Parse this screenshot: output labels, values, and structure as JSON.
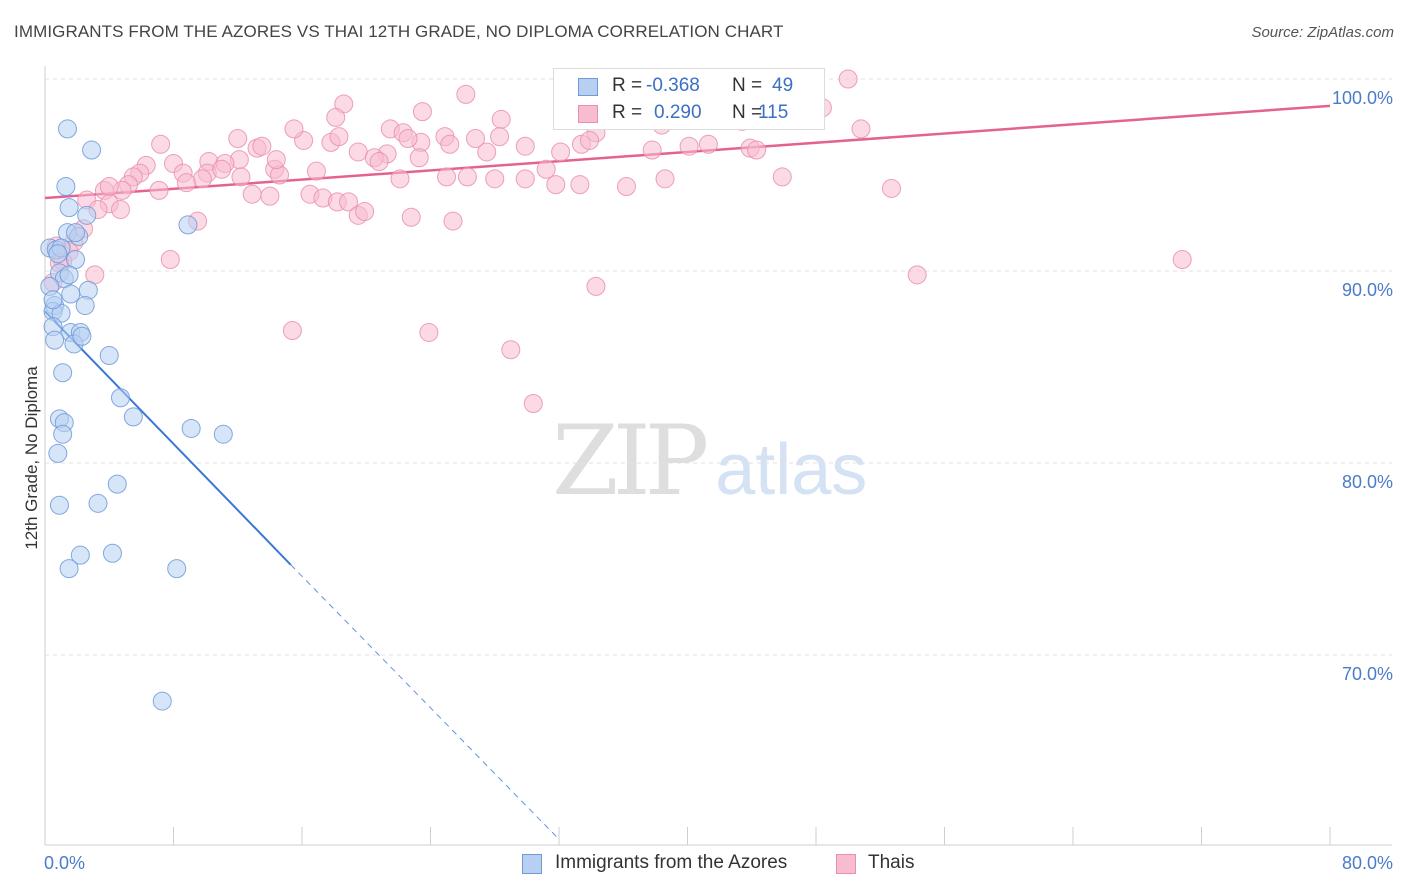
{
  "header": {
    "title": "IMMIGRANTS FROM THE AZORES VS THAI 12TH GRADE, NO DIPLOMA CORRELATION CHART",
    "source": "Source: ZipAtlas.com"
  },
  "watermark": {
    "zip": "ZIP",
    "atlas": "atlas"
  },
  "legend_top": {
    "rows": [
      {
        "r_label": "R =",
        "r_value": "-0.368",
        "n_label": "N =",
        "n_value": "49"
      },
      {
        "r_label": "R =",
        "r_value": "0.290",
        "n_label": "N =",
        "n_value": "115"
      }
    ]
  },
  "legend_bottom": {
    "azores": "Immigrants from the Azores",
    "thais": "Thais"
  },
  "colors": {
    "azores_fill": "#b7d0f2",
    "azores_stroke": "#6f9ad8",
    "azores_line": "#3a78d6",
    "thais_fill": "#f7bcd0",
    "thais_stroke": "#ea8fad",
    "thais_line": "#e4628f",
    "tick_text": "#4a7cc8",
    "grid": "#e2e2e2"
  },
  "chart_data": {
    "type": "scatter",
    "title": "IMMIGRANTS FROM THE AZORES VS THAI 12TH GRADE, NO DIPLOMA CORRELATION CHART",
    "xlabel": "",
    "ylabel": "12th Grade, No Diploma",
    "xlim": [
      0,
      80
    ],
    "ylim": [
      60,
      101.6
    ],
    "x_tick_labels": [
      "0.0%",
      "80.0%"
    ],
    "x_minor_ticks": [
      0,
      8,
      16,
      24,
      32,
      40,
      48,
      56,
      64,
      72,
      80
    ],
    "y_ticks": [
      {
        "value": 100,
        "label": "100.0%"
      },
      {
        "value": 90,
        "label": "90.0%"
      },
      {
        "value": 80,
        "label": "80.0%"
      },
      {
        "value": 70,
        "label": "70.0%"
      }
    ],
    "grid": "horizontal dashed",
    "series": [
      {
        "name": "Immigrants from the Azores",
        "R": -0.368,
        "N": 49,
        "trend": {
          "x0": 0,
          "y0": 87.9,
          "x1": 15.3,
          "y1": 74.7,
          "dash_to_x": 32,
          "dash_to_y": 60.4
        },
        "points": [
          [
            1.4,
            97.4
          ],
          [
            2.9,
            96.3
          ],
          [
            1.3,
            94.4
          ],
          [
            1.5,
            93.3
          ],
          [
            2.6,
            92.9
          ],
          [
            8.9,
            92.4
          ],
          [
            1.4,
            92.0
          ],
          [
            2.1,
            91.8
          ],
          [
            0.3,
            91.2
          ],
          [
            0.7,
            91.1
          ],
          [
            1.0,
            91.2
          ],
          [
            1.9,
            90.6
          ],
          [
            0.9,
            89.9
          ],
          [
            1.2,
            89.6
          ],
          [
            1.5,
            89.8
          ],
          [
            0.3,
            89.2
          ],
          [
            2.7,
            89.0
          ],
          [
            1.6,
            88.8
          ],
          [
            0.6,
            88.2
          ],
          [
            2.5,
            88.2
          ],
          [
            0.5,
            87.9
          ],
          [
            1.0,
            87.8
          ],
          [
            0.5,
            87.1
          ],
          [
            1.6,
            86.8
          ],
          [
            2.2,
            86.8
          ],
          [
            1.8,
            86.2
          ],
          [
            2.3,
            86.6
          ],
          [
            0.6,
            86.4
          ],
          [
            4.0,
            85.6
          ],
          [
            1.1,
            84.7
          ],
          [
            4.7,
            83.4
          ],
          [
            5.5,
            82.4
          ],
          [
            0.9,
            82.3
          ],
          [
            1.2,
            82.1
          ],
          [
            9.1,
            81.8
          ],
          [
            11.1,
            81.5
          ],
          [
            1.1,
            81.5
          ],
          [
            0.8,
            80.5
          ],
          [
            4.5,
            78.9
          ],
          [
            0.9,
            77.8
          ],
          [
            3.3,
            77.9
          ],
          [
            2.2,
            75.2
          ],
          [
            4.2,
            75.3
          ],
          [
            1.5,
            74.5
          ],
          [
            8.2,
            74.5
          ],
          [
            7.3,
            67.6
          ],
          [
            1.9,
            92.0
          ],
          [
            0.5,
            88.5
          ],
          [
            0.8,
            90.9
          ]
        ]
      },
      {
        "name": "Thais",
        "R": 0.29,
        "N": 115,
        "trend": {
          "x0": 0,
          "y0": 93.8,
          "x1": 80,
          "y1": 98.6
        },
        "points": [
          [
            32.5,
            100.0
          ],
          [
            39.0,
            100.0
          ],
          [
            50.0,
            100.0
          ],
          [
            46.2,
            99.4
          ],
          [
            26.2,
            99.2
          ],
          [
            45.4,
            99.0
          ],
          [
            18.6,
            98.7
          ],
          [
            35.9,
            99.1
          ],
          [
            47.6,
            98.0
          ],
          [
            28.4,
            97.9
          ],
          [
            32.6,
            97.9
          ],
          [
            39.7,
            98.0
          ],
          [
            21.5,
            97.4
          ],
          [
            22.3,
            97.2
          ],
          [
            24.9,
            97.0
          ],
          [
            23.4,
            96.7
          ],
          [
            38.4,
            97.6
          ],
          [
            43.4,
            97.8
          ],
          [
            50.8,
            97.4
          ],
          [
            34.3,
            97.2
          ],
          [
            40.1,
            96.5
          ],
          [
            41.3,
            96.6
          ],
          [
            43.9,
            96.4
          ],
          [
            29.9,
            96.5
          ],
          [
            33.4,
            96.6
          ],
          [
            12.0,
            96.9
          ],
          [
            16.1,
            96.8
          ],
          [
            17.8,
            96.7
          ],
          [
            13.2,
            96.4
          ],
          [
            7.2,
            96.6
          ],
          [
            18.3,
            97.0
          ],
          [
            19.5,
            96.2
          ],
          [
            21.3,
            96.1
          ],
          [
            20.5,
            95.9
          ],
          [
            23.3,
            95.9
          ],
          [
            12.1,
            95.8
          ],
          [
            10.2,
            95.7
          ],
          [
            8.0,
            95.6
          ],
          [
            6.3,
            95.5
          ],
          [
            5.9,
            95.1
          ],
          [
            11.2,
            95.6
          ],
          [
            8.6,
            95.1
          ],
          [
            10.1,
            95.1
          ],
          [
            11.0,
            95.3
          ],
          [
            14.3,
            95.3
          ],
          [
            14.6,
            95.0
          ],
          [
            12.2,
            94.9
          ],
          [
            9.8,
            94.8
          ],
          [
            8.8,
            94.6
          ],
          [
            5.5,
            94.9
          ],
          [
            5.2,
            94.5
          ],
          [
            4.8,
            94.2
          ],
          [
            3.7,
            94.2
          ],
          [
            4.0,
            94.4
          ],
          [
            7.1,
            94.2
          ],
          [
            2.6,
            93.7
          ],
          [
            4.0,
            93.5
          ],
          [
            4.7,
            93.2
          ],
          [
            3.3,
            93.2
          ],
          [
            12.9,
            94.0
          ],
          [
            14.0,
            93.9
          ],
          [
            16.5,
            94.0
          ],
          [
            17.3,
            93.8
          ],
          [
            18.2,
            93.6
          ],
          [
            18.9,
            93.6
          ],
          [
            19.5,
            92.9
          ],
          [
            19.9,
            93.1
          ],
          [
            22.1,
            94.8
          ],
          [
            25.0,
            94.9
          ],
          [
            26.3,
            94.9
          ],
          [
            28.0,
            94.8
          ],
          [
            29.9,
            94.8
          ],
          [
            31.8,
            94.5
          ],
          [
            33.3,
            94.5
          ],
          [
            36.2,
            94.4
          ],
          [
            38.6,
            94.8
          ],
          [
            45.9,
            94.9
          ],
          [
            52.7,
            94.3
          ],
          [
            22.8,
            92.8
          ],
          [
            25.4,
            92.6
          ],
          [
            2.4,
            92.2
          ],
          [
            9.5,
            92.6
          ],
          [
            1.8,
            91.5
          ],
          [
            1.5,
            91.0
          ],
          [
            0.7,
            91.3
          ],
          [
            1.1,
            90.5
          ],
          [
            0.9,
            90.4
          ],
          [
            7.8,
            90.6
          ],
          [
            3.1,
            89.8
          ],
          [
            0.5,
            89.4
          ],
          [
            54.3,
            89.8
          ],
          [
            70.8,
            90.6
          ],
          [
            34.3,
            89.2
          ],
          [
            15.4,
            86.9
          ],
          [
            23.9,
            86.8
          ],
          [
            29.0,
            85.9
          ],
          [
            30.4,
            83.1
          ],
          [
            37.8,
            96.3
          ],
          [
            32.1,
            96.2
          ],
          [
            27.5,
            96.2
          ],
          [
            25.2,
            96.6
          ],
          [
            26.8,
            96.9
          ],
          [
            22.6,
            96.9
          ],
          [
            33.9,
            96.8
          ],
          [
            14.4,
            95.8
          ],
          [
            16.9,
            95.2
          ],
          [
            20.8,
            95.7
          ],
          [
            31.2,
            95.3
          ],
          [
            13.5,
            96.5
          ],
          [
            18.1,
            98.0
          ],
          [
            15.5,
            97.4
          ],
          [
            48.4,
            98.5
          ],
          [
            23.5,
            98.3
          ],
          [
            28.3,
            97.0
          ],
          [
            44.3,
            96.3
          ]
        ]
      }
    ]
  }
}
